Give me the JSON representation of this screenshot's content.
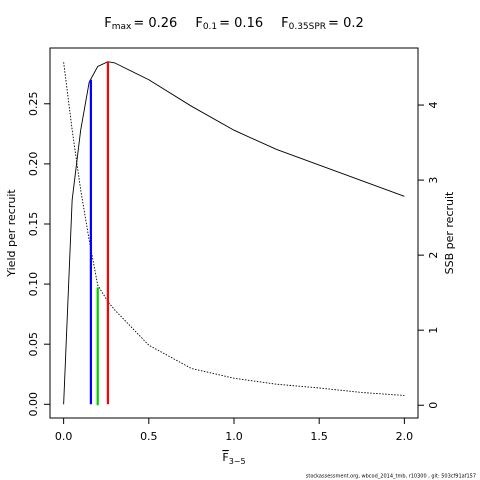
{
  "chart_data": {
    "type": "line",
    "title_parts": [
      {
        "symbol": "F",
        "sub": "max",
        "text": "= 0.26",
        "value": 0.26,
        "top": 0.285,
        "axis": "y",
        "color": "#ff0000"
      },
      {
        "symbol": "F",
        "sub": "0.1",
        "text": "= 0.16",
        "value": 0.16,
        "top": 0.27,
        "axis": "y",
        "color": "#0000ff"
      },
      {
        "symbol": "F",
        "sub": "0.35SPR",
        "text": "= 0.2",
        "value": 0.2,
        "top": 1.57,
        "axis": "y2",
        "color": "#00cc00"
      }
    ],
    "xlabel": "F",
    "xlabel_sub": "3−5",
    "ylabel": "Yield per recruit",
    "y2label": "SSB per recruit",
    "x": [
      0,
      0.05,
      0.1,
      0.15,
      0.2,
      0.26,
      0.3,
      0.5,
      0.75,
      1.0,
      1.25,
      1.5,
      1.75,
      2.0
    ],
    "series": [
      {
        "name": "Yield per recruit",
        "color": "#000000",
        "dash": "solid",
        "values": [
          0,
          0.17,
          0.228,
          0.268,
          0.281,
          0.285,
          0.284,
          0.27,
          0.248,
          0.228,
          0.212,
          0.199,
          0.186,
          0.173
        ]
      },
      {
        "name": "SSB per recruit",
        "color": "#000000",
        "dash": "dotted",
        "axis": "y2",
        "values": [
          4.57,
          3.67,
          2.87,
          2.2,
          1.6,
          1.38,
          1.27,
          0.8,
          0.49,
          0.36,
          0.28,
          0.23,
          0.17,
          0.13
        ]
      }
    ],
    "xlim": [
      -0.08,
      2.08
    ],
    "xticks": [
      {
        "value": 0,
        "label": "0.0"
      },
      {
        "value": 0.5,
        "label": "0.5"
      },
      {
        "value": 1,
        "label": "1.0"
      },
      {
        "value": 1.5,
        "label": "1.5"
      },
      {
        "value": 2,
        "label": "2.0"
      }
    ],
    "ylim": [
      -0.0114,
      0.2964
    ],
    "yticks": [
      {
        "value": 0,
        "label": "0.00"
      },
      {
        "value": 0.05,
        "label": "0.05"
      },
      {
        "value": 0.1,
        "label": "0.10"
      },
      {
        "value": 0.15,
        "label": "0.15"
      },
      {
        "value": 0.2,
        "label": "0.20"
      },
      {
        "value": 0.25,
        "label": "0.25"
      }
    ],
    "y2lim": [
      -0.17,
      4.76
    ],
    "y2ticks": [
      0,
      1,
      2,
      3,
      4
    ],
    "footer": "stockassessment.org, wbcod_2014_tmb, r10300 , git: 503cf91af157"
  }
}
